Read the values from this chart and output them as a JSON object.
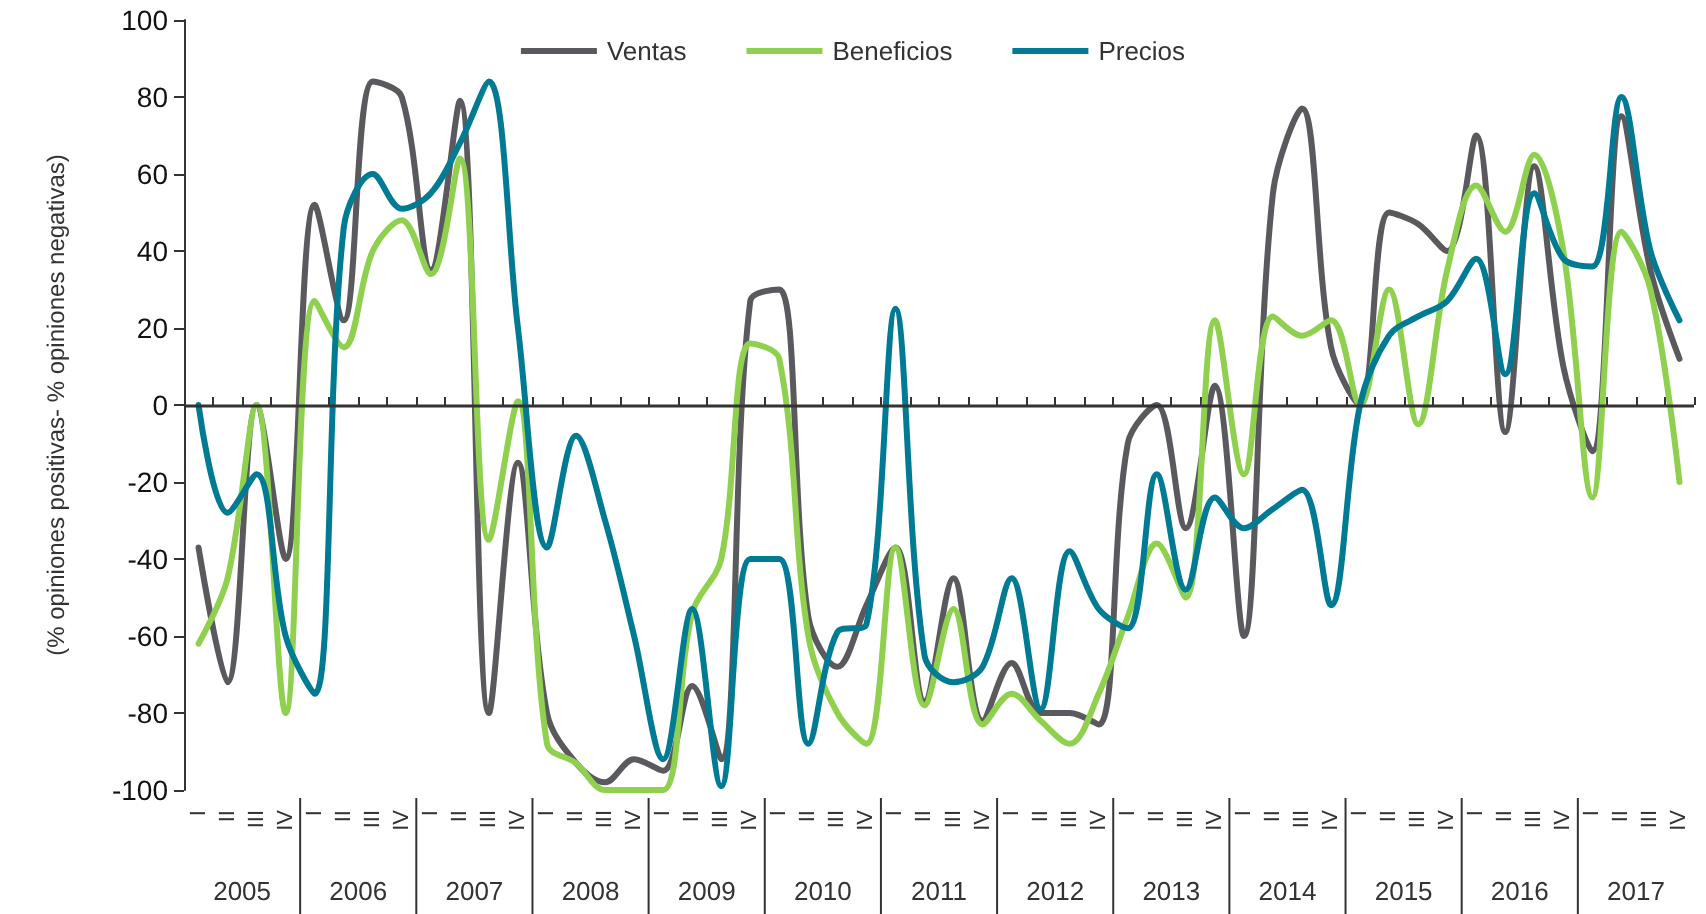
{
  "chart_data": {
    "type": "line",
    "ylabel": "(% opiniones positivas- % opiniones negativas)",
    "categories": [
      "I",
      "II",
      "III",
      "IV",
      "I",
      "II",
      "III",
      "IV",
      "I",
      "II",
      "III",
      "IV",
      "I",
      "II",
      "III",
      "IV",
      "I",
      "II",
      "III",
      "IV",
      "I",
      "II",
      "III",
      "IV",
      "I",
      "II",
      "III",
      "IV",
      "I",
      "II",
      "III",
      "IV",
      "I",
      "II",
      "III",
      "IV",
      "I",
      "II",
      "III",
      "IV",
      "I",
      "II",
      "III",
      "IV",
      "I",
      "II",
      "III",
      "IV",
      "I",
      "II",
      "III",
      "IV"
    ],
    "annotations": [
      "2005",
      "2006",
      "2007",
      "2008",
      "2009",
      "2010",
      "2011",
      "2012",
      "2013",
      "2014",
      "2015",
      "2016",
      "2017"
    ],
    "series": [
      {
        "name": "Ventas",
        "color": "#5a5a5e",
        "values": [
          -37,
          -72,
          0,
          -40,
          52,
          22,
          84,
          80,
          35,
          79,
          -80,
          -15,
          -80,
          -93,
          -98,
          -92,
          -95,
          -73,
          -92,
          27,
          30,
          -55,
          -68,
          -52,
          -37,
          -77,
          -45,
          -82,
          -67,
          -80,
          -80,
          -83,
          -10,
          0,
          -32,
          5,
          -60,
          55,
          77,
          15,
          0,
          50,
          47,
          40,
          70,
          -7,
          62,
          10,
          -12,
          75,
          35,
          12
        ]
      },
      {
        "name": "Beneficios",
        "color": "#8fd14f",
        "values": [
          -62,
          -45,
          0,
          -80,
          27,
          15,
          40,
          48,
          34,
          64,
          -35,
          1,
          -88,
          -93,
          -100,
          -100,
          -100,
          -54,
          -40,
          16,
          12,
          -60,
          -80,
          -88,
          -37,
          -78,
          -53,
          -83,
          -75,
          -82,
          -88,
          -75,
          -55,
          -36,
          -50,
          22,
          -18,
          23,
          18,
          22,
          0,
          30,
          -5,
          35,
          57,
          45,
          65,
          40,
          -24,
          45,
          30,
          -20
        ]
      },
      {
        "name": "Precios",
        "color": "#007b93",
        "values": [
          0,
          -28,
          -18,
          -60,
          -75,
          46,
          60,
          51,
          55,
          68,
          84,
          20,
          -37,
          -8,
          -30,
          -60,
          -92,
          -53,
          -99,
          -40,
          -40,
          -88,
          -59,
          -57,
          25,
          -65,
          -72,
          -68,
          -45,
          -79,
          -38,
          -53,
          -58,
          -18,
          -48,
          -24,
          -32,
          -27,
          -22,
          -52,
          0,
          18,
          23,
          27,
          38,
          8,
          55,
          38,
          36,
          80,
          40,
          22
        ]
      }
    ],
    "ylim": [
      -100,
      100
    ],
    "yticks": [
      -100,
      -80,
      -60,
      -40,
      -20,
      0,
      20,
      40,
      60,
      80,
      100
    ],
    "ref_lines": [
      {
        "axis": "y",
        "value": 0,
        "color": "#333333"
      }
    ],
    "grid": false,
    "legend": "top",
    "marker": "none",
    "line_style": "solid"
  }
}
